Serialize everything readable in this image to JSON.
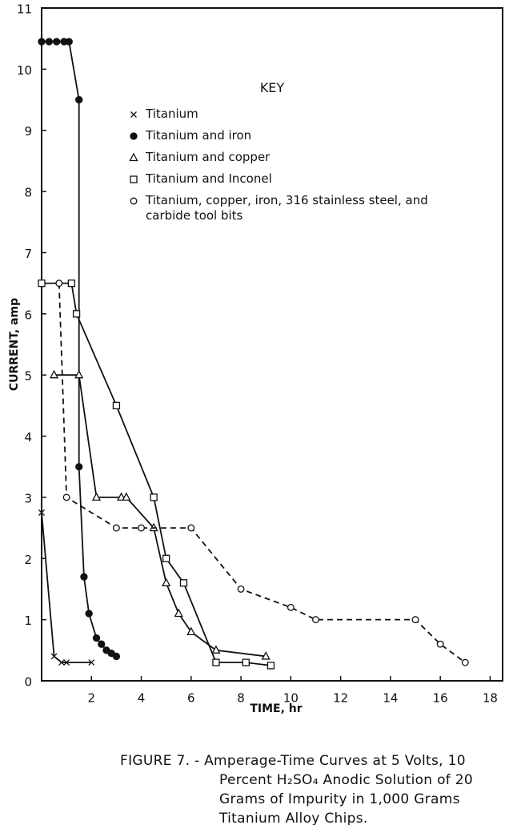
{
  "chart_data": {
    "type": "line",
    "legend_title": "KEY",
    "x_label": "TIME, hr",
    "y_label": "CURRENT, amp",
    "caption": "FIGURE 7. - Amperage-Time Curves at 5 Volts, 10 Percent H₂SO₄ Anodic Solution of 20 Grams of Impurity in 1,000 Grams Titanium Alloy Chips.",
    "xlim": [
      0,
      18.5
    ],
    "ylim": [
      0,
      11
    ],
    "xticks": [
      2,
      4,
      6,
      8,
      10,
      12,
      14,
      16,
      18
    ],
    "yticks": [
      0,
      1,
      2,
      3,
      4,
      5,
      6,
      7,
      8,
      9,
      10,
      11
    ],
    "grid": false,
    "series": [
      {
        "name": "Titanium",
        "color": "#111",
        "marker": "x",
        "dashed": false,
        "x": [
          0,
          0.5,
          0.8,
          1,
          2
        ],
        "values": [
          2.75,
          0.4,
          0.3,
          0.3,
          0.3
        ]
      },
      {
        "name": "Titanium and iron",
        "color": "#111",
        "marker": "filled-circle",
        "dashed": false,
        "x": [
          0,
          0.3,
          0.6,
          0.9,
          1.1,
          1.5,
          1.5,
          1.7,
          1.9,
          2.2,
          2.4,
          2.6,
          2.8,
          3
        ],
        "values": [
          10.45,
          10.45,
          10.45,
          10.45,
          10.45,
          9.5,
          3.5,
          1.7,
          1.1,
          0.7,
          0.6,
          0.5,
          0.45,
          0.4
        ]
      },
      {
        "name": "Titanium and copper",
        "color": "#111",
        "marker": "triangle",
        "dashed": false,
        "x": [
          0.5,
          1.5,
          2.2,
          3.2,
          3.4,
          4.5,
          5,
          5.5,
          6,
          7,
          9
        ],
        "values": [
          5,
          5,
          3,
          3,
          3,
          2.5,
          1.6,
          1.1,
          0.8,
          0.5,
          0.4
        ]
      },
      {
        "name": "Titanium and Inconel",
        "color": "#111",
        "marker": "square",
        "dashed": false,
        "x": [
          0,
          1.2,
          1.4,
          3,
          4.5,
          5,
          5.7,
          7,
          8.2,
          9.2
        ],
        "values": [
          6.5,
          6.5,
          6,
          4.5,
          3,
          2,
          1.6,
          0.3,
          0.3,
          0.25
        ]
      },
      {
        "name": "Titanium, copper, iron, 316 stainless steel, and carbide tool bits",
        "color": "#111",
        "marker": "circle",
        "dashed": true,
        "x": [
          0.7,
          1,
          3,
          4,
          6,
          8,
          10,
          11,
          15,
          16,
          17
        ],
        "values": [
          6.5,
          3,
          2.5,
          2.5,
          2.5,
          1.5,
          1.2,
          1,
          1,
          0.6,
          0.3
        ]
      }
    ]
  }
}
